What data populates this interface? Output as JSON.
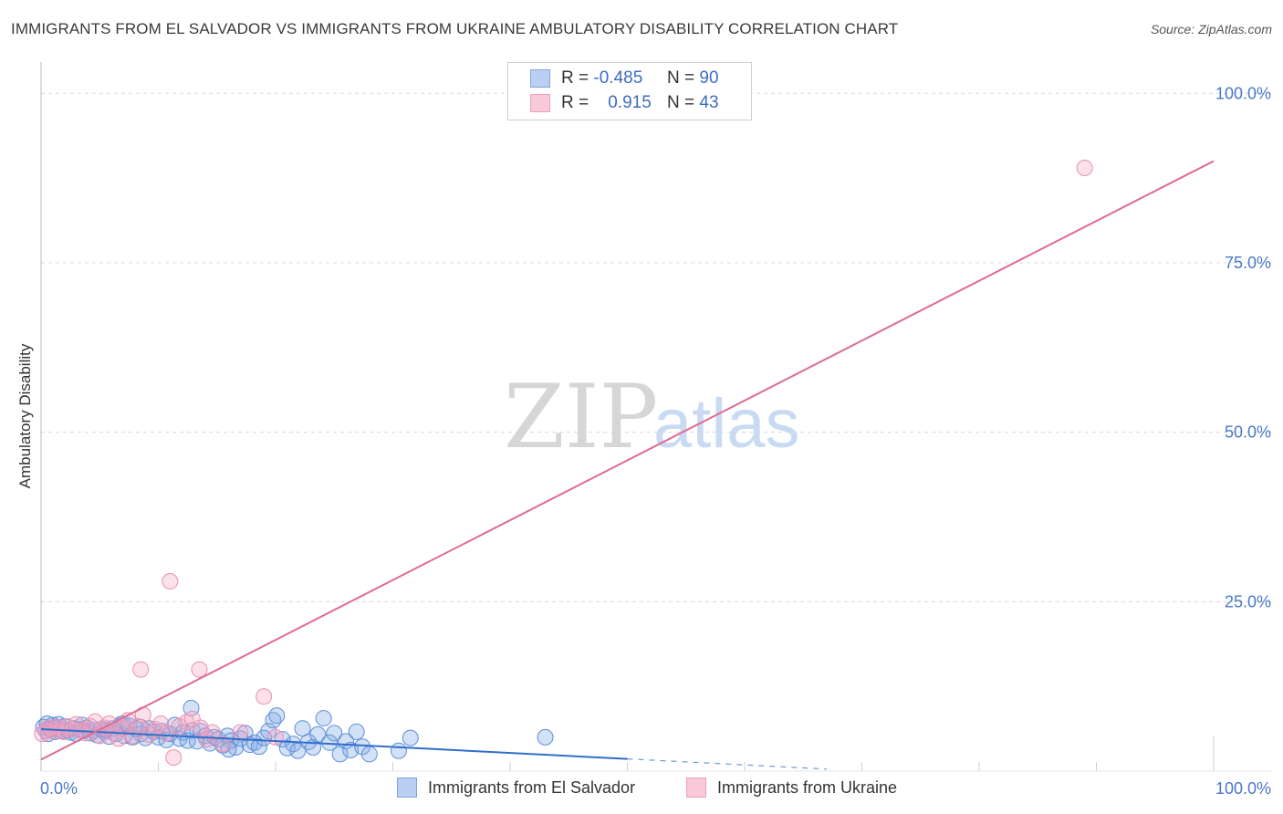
{
  "title": "IMMIGRANTS FROM EL SALVADOR VS IMMIGRANTS FROM UKRAINE AMBULATORY DISABILITY CORRELATION CHART",
  "source": "Source: ZipAtlas.com",
  "watermark": {
    "zip": "ZIP",
    "atlas": "atlas"
  },
  "colors": {
    "blue": "#3a78d0",
    "blue_fill": "rgba(120,160,225,0.35)",
    "pink": "#e06a96",
    "pink_fill": "rgba(245,160,190,0.35)",
    "grid": "#d8d8d8",
    "tick": "#4a78c8"
  },
  "legend": {
    "rows": [
      {
        "r_label": "R =",
        "r_value": "-0.485",
        "n_label": "N =",
        "n_value": "90"
      },
      {
        "r_label": "R =",
        "r_value": "0.915",
        "n_label": "N =",
        "n_value": "43"
      }
    ]
  },
  "bottom_legend": {
    "el_salvador": "Immigrants from El Salvador",
    "ukraine": "Immigrants from Ukraine"
  },
  "chart_data": {
    "type": "scatter",
    "title": "IMMIGRANTS FROM EL SALVADOR VS IMMIGRANTS FROM UKRAINE AMBULATORY DISABILITY CORRELATION CHART",
    "xlabel": "",
    "ylabel": "Ambulatory Disability",
    "xlim": [
      0,
      100
    ],
    "ylim": [
      0,
      103
    ],
    "x_tick_labels": [
      "0.0%",
      "100.0%"
    ],
    "y_tick_labels": [
      "25.0%",
      "50.0%",
      "75.0%",
      "100.0%"
    ],
    "y_ticks": [
      25,
      50,
      75,
      100
    ],
    "series": [
      {
        "name": "Immigrants from El Salvador",
        "color": "blue",
        "trend": {
          "x0": 0,
          "y0": 6.2,
          "x1": 50,
          "y1": 1.8,
          "dashed_to_x": 67,
          "dashed_y": 0.3
        },
        "points": [
          [
            0.2,
            6.5
          ],
          [
            0.4,
            6.0
          ],
          [
            0.5,
            7.0
          ],
          [
            0.6,
            5.5
          ],
          [
            0.8,
            6.2
          ],
          [
            1.0,
            6.8
          ],
          [
            1.2,
            5.8
          ],
          [
            1.4,
            6.4
          ],
          [
            1.6,
            6.1
          ],
          [
            1.8,
            5.9
          ],
          [
            2.0,
            6.6
          ],
          [
            2.2,
            6.0
          ],
          [
            2.5,
            5.7
          ],
          [
            2.8,
            6.3
          ],
          [
            3.0,
            5.5
          ],
          [
            3.3,
            6.2
          ],
          [
            3.6,
            5.9
          ],
          [
            3.9,
            6.4
          ],
          [
            4.2,
            5.6
          ],
          [
            4.5,
            6.0
          ],
          [
            4.8,
            5.3
          ],
          [
            5.1,
            6.2
          ],
          [
            5.4,
            5.8
          ],
          [
            5.8,
            5.1
          ],
          [
            6.1,
            6.3
          ],
          [
            6.4,
            5.5
          ],
          [
            6.8,
            6.9
          ],
          [
            7.1,
            5.2
          ],
          [
            7.5,
            6.7
          ],
          [
            7.8,
            5.0
          ],
          [
            8.1,
            6.2
          ],
          [
            8.5,
            5.5
          ],
          [
            8.9,
            4.9
          ],
          [
            9.2,
            6.3
          ],
          [
            9.6,
            5.8
          ],
          [
            10.0,
            5.0
          ],
          [
            10.3,
            5.9
          ],
          [
            10.7,
            4.6
          ],
          [
            11.0,
            5.5
          ],
          [
            11.4,
            6.8
          ],
          [
            11.8,
            4.8
          ],
          [
            12.1,
            5.7
          ],
          [
            12.5,
            4.5
          ],
          [
            12.9,
            6.0
          ],
          [
            13.3,
            4.4
          ],
          [
            13.6,
            5.9
          ],
          [
            14.0,
            5.2
          ],
          [
            14.4,
            4.1
          ],
          [
            14.8,
            5.0
          ],
          [
            15.1,
            4.7
          ],
          [
            15.5,
            3.8
          ],
          [
            15.9,
            5.2
          ],
          [
            16.2,
            4.5
          ],
          [
            16.6,
            3.5
          ],
          [
            17.0,
            4.8
          ],
          [
            17.4,
            5.6
          ],
          [
            17.8,
            3.9
          ],
          [
            18.2,
            4.2
          ],
          [
            18.6,
            3.6
          ],
          [
            19.0,
            4.9
          ],
          [
            19.4,
            5.9
          ],
          [
            19.8,
            7.5
          ],
          [
            20.1,
            8.2
          ],
          [
            20.6,
            4.7
          ],
          [
            21.0,
            3.4
          ],
          [
            21.5,
            4.0
          ],
          [
            21.9,
            3.0
          ],
          [
            22.3,
            6.3
          ],
          [
            22.8,
            4.3
          ],
          [
            23.2,
            3.5
          ],
          [
            23.6,
            5.4
          ],
          [
            24.1,
            7.8
          ],
          [
            24.6,
            4.2
          ],
          [
            25.0,
            5.6
          ],
          [
            25.5,
            2.5
          ],
          [
            26.0,
            4.4
          ],
          [
            26.4,
            3.1
          ],
          [
            26.9,
            5.8
          ],
          [
            27.4,
            3.6
          ],
          [
            28.0,
            2.5
          ],
          [
            16.0,
            3.2
          ],
          [
            12.8,
            9.3
          ],
          [
            8.5,
            6.5
          ],
          [
            7.0,
            7.0
          ],
          [
            5.5,
            6.1
          ],
          [
            3.5,
            6.8
          ],
          [
            1.5,
            6.9
          ],
          [
            30.5,
            3.0
          ],
          [
            31.5,
            4.9
          ],
          [
            43.0,
            5.0
          ]
        ]
      },
      {
        "name": "Immigrants from Ukraine",
        "color": "pink",
        "trend": {
          "x0": 0,
          "y0": 1.7,
          "x1": 100,
          "y1": 90.0
        },
        "points": [
          [
            0.1,
            5.5
          ],
          [
            0.4,
            6.0
          ],
          [
            0.7,
            6.4
          ],
          [
            1.0,
            5.9
          ],
          [
            1.3,
            6.5
          ],
          [
            1.6,
            6.1
          ],
          [
            1.9,
            5.8
          ],
          [
            2.2,
            6.6
          ],
          [
            2.6,
            6.2
          ],
          [
            3.0,
            6.9
          ],
          [
            3.4,
            6.0
          ],
          [
            3.8,
            5.6
          ],
          [
            4.2,
            6.6
          ],
          [
            4.6,
            7.3
          ],
          [
            5.0,
            5.2
          ],
          [
            5.4,
            6.4
          ],
          [
            5.8,
            7.0
          ],
          [
            6.2,
            5.6
          ],
          [
            6.6,
            4.8
          ],
          [
            7.0,
            6.3
          ],
          [
            7.4,
            7.5
          ],
          [
            7.8,
            5.2
          ],
          [
            8.3,
            6.6
          ],
          [
            8.7,
            8.3
          ],
          [
            9.2,
            5.4
          ],
          [
            9.7,
            6.2
          ],
          [
            10.2,
            7.0
          ],
          [
            10.7,
            5.6
          ],
          [
            11.3,
            2.0
          ],
          [
            11.8,
            6.6
          ],
          [
            12.4,
            7.2
          ],
          [
            12.9,
            7.7
          ],
          [
            13.6,
            6.4
          ],
          [
            14.1,
            4.7
          ],
          [
            14.6,
            5.7
          ],
          [
            15.5,
            4.0
          ],
          [
            17.0,
            5.7
          ],
          [
            19.0,
            11.0
          ],
          [
            20.0,
            5.0
          ],
          [
            8.5,
            15.0
          ],
          [
            11.0,
            28.0
          ],
          [
            13.5,
            15.0
          ],
          [
            89.0,
            89.0
          ]
        ]
      }
    ]
  }
}
